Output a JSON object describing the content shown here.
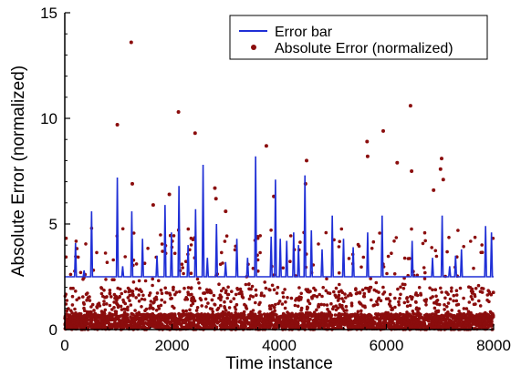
{
  "chart_data": {
    "type": "scatter",
    "title": "",
    "xlabel": "Time instance",
    "ylabel": "Absolute Error (normalized)",
    "xlim": [
      0,
      8000
    ],
    "ylim": [
      0,
      15
    ],
    "x_ticks": [
      0,
      2000,
      4000,
      6000,
      8000
    ],
    "y_ticks": [
      0,
      5,
      10,
      15
    ],
    "x_tick_labels": [
      "0",
      "2000",
      "4000",
      "6000",
      "8000"
    ],
    "y_tick_labels": [
      "0",
      "5",
      "10",
      "15"
    ],
    "grid": false,
    "legend_position": "top-right",
    "series": [
      {
        "name": "Error bar",
        "type": "line",
        "color": "#1f2fd6",
        "baseline": 2.5,
        "spikes": [
          {
            "x": 200,
            "y": 4.1
          },
          {
            "x": 360,
            "y": 2.8
          },
          {
            "x": 500,
            "y": 5.6
          },
          {
            "x": 980,
            "y": 7.2
          },
          {
            "x": 1080,
            "y": 3.0
          },
          {
            "x": 1250,
            "y": 5.6
          },
          {
            "x": 1450,
            "y": 4.3
          },
          {
            "x": 1720,
            "y": 3.5
          },
          {
            "x": 1870,
            "y": 5.9
          },
          {
            "x": 1990,
            "y": 4.6
          },
          {
            "x": 2130,
            "y": 6.8
          },
          {
            "x": 2300,
            "y": 4.0
          },
          {
            "x": 2440,
            "y": 5.7
          },
          {
            "x": 2580,
            "y": 7.8
          },
          {
            "x": 2660,
            "y": 3.4
          },
          {
            "x": 2830,
            "y": 5.0
          },
          {
            "x": 3000,
            "y": 3.2
          },
          {
            "x": 3210,
            "y": 4.3
          },
          {
            "x": 3410,
            "y": 3.4
          },
          {
            "x": 3560,
            "y": 8.2
          },
          {
            "x": 3850,
            "y": 4.4
          },
          {
            "x": 3930,
            "y": 7.1
          },
          {
            "x": 4020,
            "y": 4.3
          },
          {
            "x": 4140,
            "y": 4.2
          },
          {
            "x": 4270,
            "y": 4.6
          },
          {
            "x": 4360,
            "y": 4.0
          },
          {
            "x": 4480,
            "y": 7.3
          },
          {
            "x": 4600,
            "y": 4.7
          },
          {
            "x": 4800,
            "y": 3.8
          },
          {
            "x": 4990,
            "y": 5.4
          },
          {
            "x": 5200,
            "y": 4.3
          },
          {
            "x": 5380,
            "y": 3.9
          },
          {
            "x": 5650,
            "y": 4.6
          },
          {
            "x": 5920,
            "y": 5.4
          },
          {
            "x": 6480,
            "y": 4.2
          },
          {
            "x": 6860,
            "y": 3.4
          },
          {
            "x": 7040,
            "y": 5.4
          },
          {
            "x": 7180,
            "y": 3.0
          },
          {
            "x": 7290,
            "y": 3.5
          },
          {
            "x": 7400,
            "y": 3.8
          },
          {
            "x": 7850,
            "y": 4.9
          },
          {
            "x": 7960,
            "y": 4.6
          }
        ]
      },
      {
        "name": "Absolute Error (normalized)",
        "type": "scatter",
        "color": "#8b0d0d",
        "outliers": [
          [
            1240,
            13.6
          ],
          [
            980,
            9.7
          ],
          [
            2120,
            10.3
          ],
          [
            2430,
            9.3
          ],
          [
            6450,
            10.6
          ],
          [
            5940,
            9.4
          ],
          [
            5640,
            8.9
          ],
          [
            5650,
            8.2
          ],
          [
            3760,
            8.7
          ],
          [
            4510,
            8.0
          ],
          [
            7030,
            8.1
          ],
          [
            6200,
            7.9
          ],
          [
            6470,
            7.5
          ],
          [
            7010,
            7.6
          ],
          [
            7060,
            7.1
          ],
          [
            6880,
            6.6
          ],
          [
            1260,
            6.9
          ],
          [
            3900,
            6.3
          ],
          [
            4490,
            6.9
          ],
          [
            2800,
            6.7
          ],
          [
            1650,
            5.9
          ],
          [
            3000,
            5.6
          ],
          [
            2820,
            6.2
          ],
          [
            1950,
            6.4
          ]
        ]
      }
    ]
  }
}
